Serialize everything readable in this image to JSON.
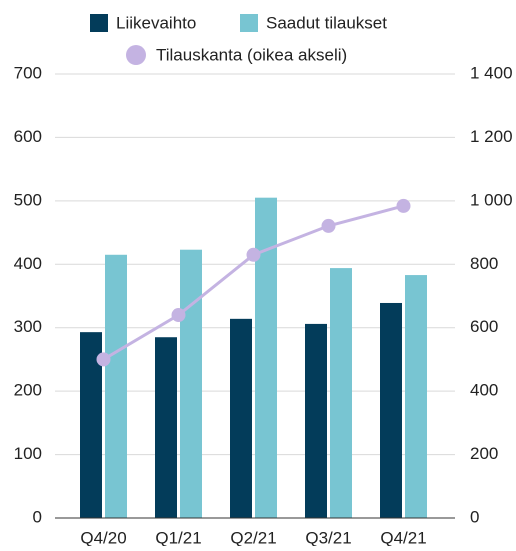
{
  "chart_data": {
    "type": "bar",
    "categories": [
      "Q4/20",
      "Q1/21",
      "Q2/21",
      "Q3/21",
      "Q4/21"
    ],
    "series": [
      {
        "name": "Liikevaihto",
        "color": "#033c5a",
        "values": [
          293,
          285,
          314,
          306,
          339
        ]
      },
      {
        "name": "Saadut tilaukset",
        "color": "#78c5d2",
        "values": [
          415,
          423,
          505,
          394,
          383
        ]
      },
      {
        "name": "Tilauskanta (oikea akseli)",
        "color": "#c4b3e2",
        "type": "line",
        "axis": "y2",
        "values": [
          500,
          640,
          830,
          921,
          984
        ]
      }
    ],
    "ylim": [
      0,
      700
    ],
    "yticks": [
      0,
      100,
      200,
      300,
      400,
      500,
      600,
      700
    ],
    "y2lim": [
      0,
      1400
    ],
    "y2ticks": [
      0,
      200,
      400,
      600,
      800,
      {
        "value": 1000,
        "label": "1 000"
      },
      {
        "value": 1200,
        "label": "1 200"
      },
      {
        "value": 1400,
        "label": "1 400"
      }
    ],
    "grid": true,
    "legend": "top"
  }
}
